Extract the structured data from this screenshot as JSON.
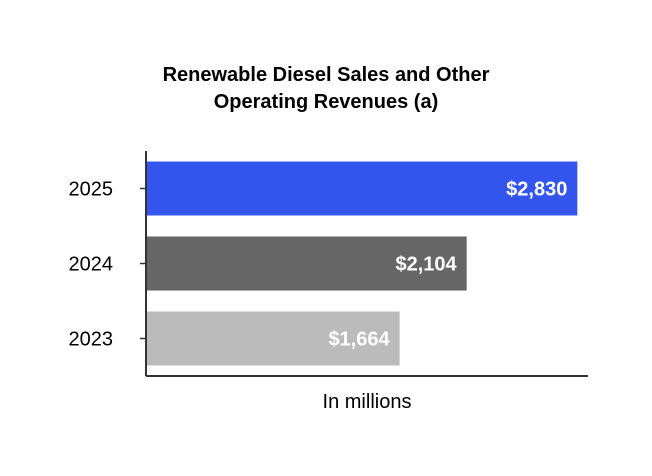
{
  "chart_data": {
    "type": "bar",
    "orientation": "horizontal",
    "title_lines": [
      "Renewable Diesel Sales and Other",
      "Operating Revenues (a)"
    ],
    "xlabel": "In millions",
    "ylabel": "",
    "categories": [
      "2025",
      "2024",
      "2023"
    ],
    "values": [
      2830,
      2104,
      1664
    ],
    "value_labels": [
      "$2,830",
      "$2,104",
      "$1,664"
    ],
    "bar_colors": [
      "#3355ee",
      "#666666",
      "#bbbbbb"
    ],
    "xlim": [
      0,
      2900
    ],
    "grid": false,
    "legend": "none"
  }
}
